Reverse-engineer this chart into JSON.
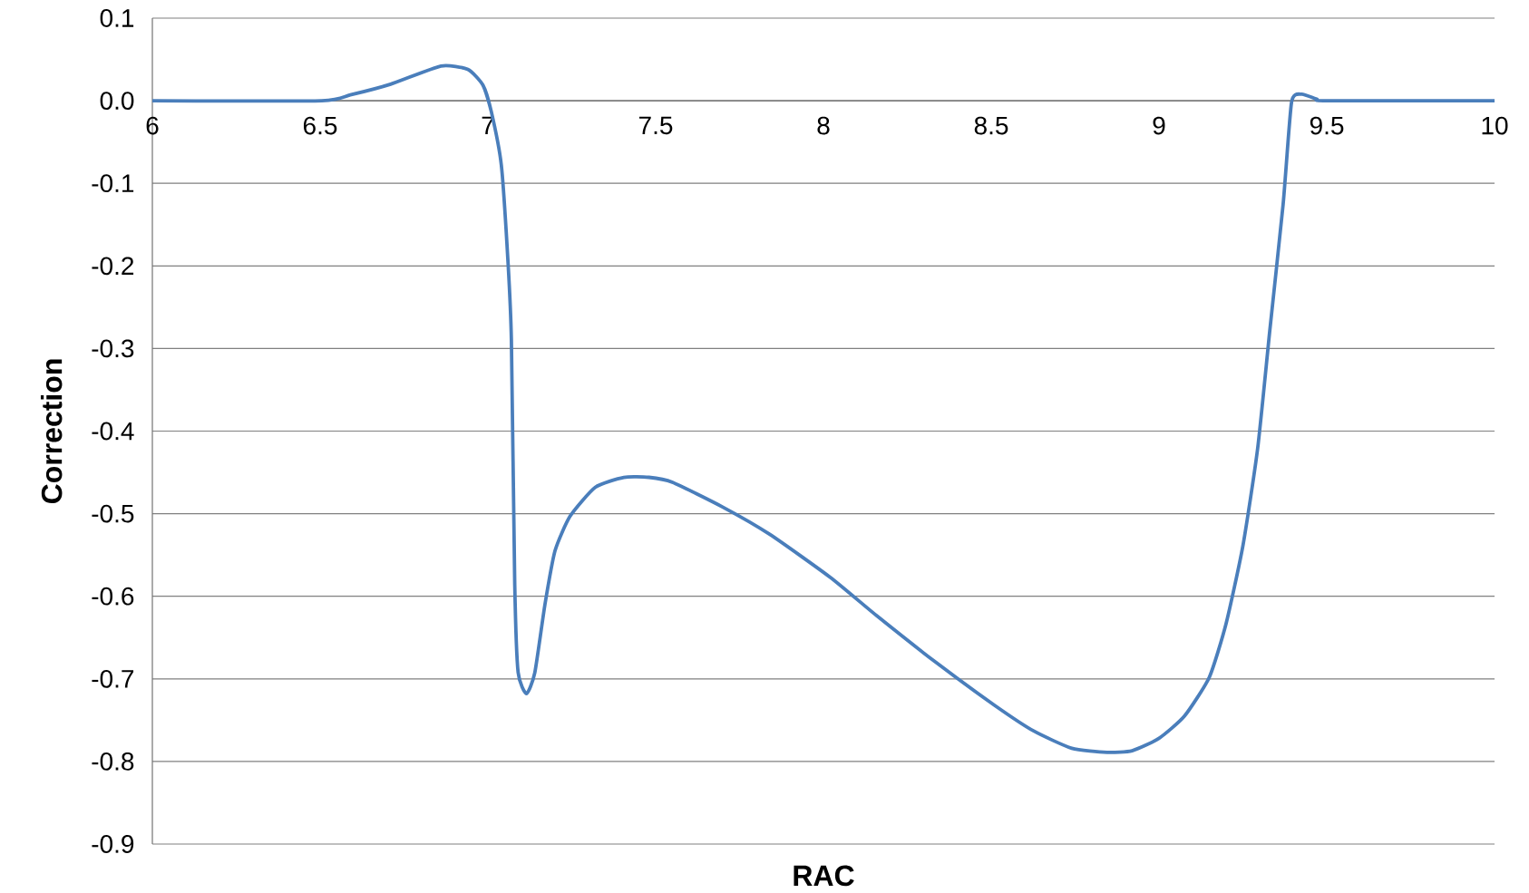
{
  "chart_data": {
    "type": "line",
    "xlabel": "RAC",
    "ylabel": "Correction",
    "x": [
      6,
      6.505,
      6.59,
      6.71,
      6.86,
      6.94,
      6.985,
      7.01,
      7.04,
      7.06,
      7.07,
      7.08,
      7.09,
      7.115,
      7.14,
      7.17,
      7.2,
      7.245,
      7.32,
      7.405,
      7.48,
      7.55,
      7.7,
      7.84,
      8.02,
      8.16,
      8.335,
      8.51,
      8.626,
      8.74,
      8.845,
      8.92,
      9.0,
      9.076,
      9.15,
      9.2,
      9.25,
      9.294,
      9.33,
      9.37,
      9.395,
      9.425,
      9.47,
      9.5,
      10
    ],
    "values": [
      0,
      0,
      0.007,
      0.02,
      0.042,
      0.038,
      0.019,
      -0.013,
      -0.078,
      -0.196,
      -0.29,
      -0.586,
      -0.692,
      -0.718,
      -0.692,
      -0.61,
      -0.545,
      -0.503,
      -0.468,
      -0.456,
      -0.456,
      -0.462,
      -0.492,
      -0.525,
      -0.577,
      -0.624,
      -0.68,
      -0.732,
      -0.763,
      -0.784,
      -0.789,
      -0.787,
      -0.772,
      -0.745,
      -0.698,
      -0.633,
      -0.539,
      -0.421,
      -0.279,
      -0.125,
      -0.002,
      0.008,
      0.002,
      0,
      0
    ],
    "color": "#4a7ebb",
    "xlim": [
      6,
      10
    ],
    "ylim": [
      -0.9,
      0.1
    ],
    "xticks": [
      6,
      6.5,
      7,
      7.5,
      8,
      8.5,
      9,
      9.5,
      10
    ],
    "yticks": [
      0.1,
      {
        "value": 0,
        "label": "0.0"
      },
      -0.1,
      -0.2,
      -0.3,
      -0.4,
      -0.5,
      -0.6,
      -0.7,
      -0.8,
      -0.9
    ],
    "grid": "y"
  }
}
